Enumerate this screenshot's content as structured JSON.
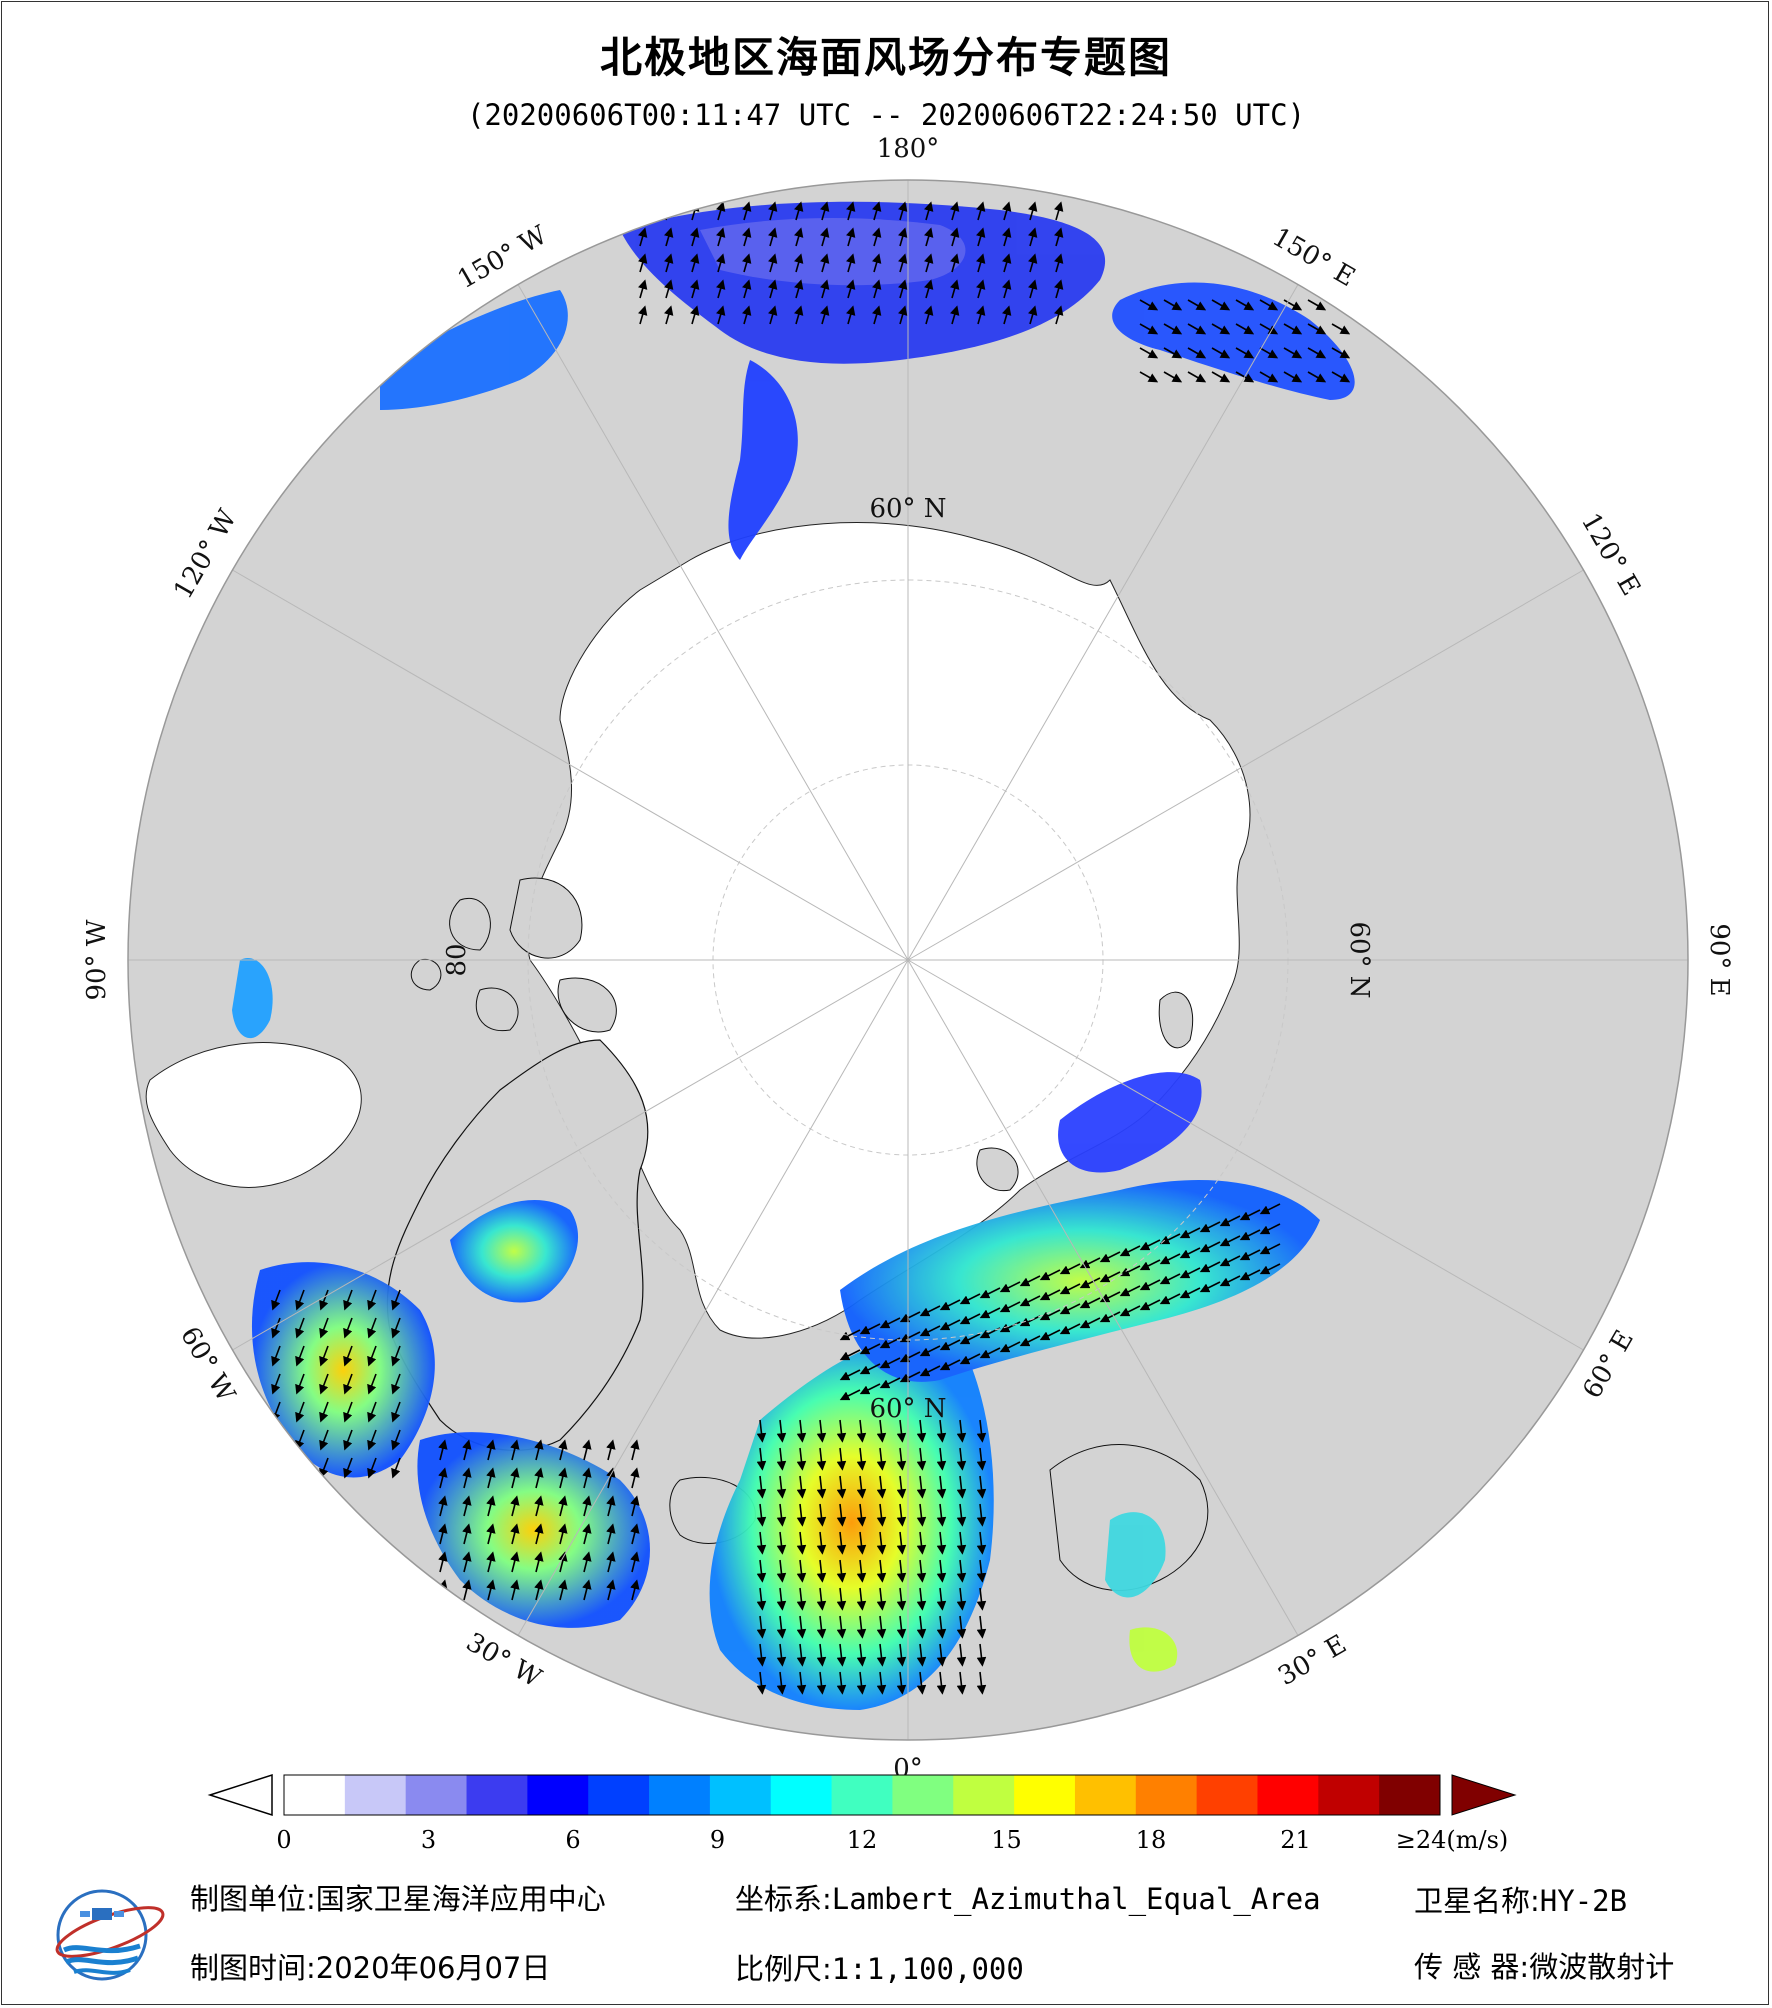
{
  "title": "北极地区海面风场分布专题图",
  "subtitle": "(20200606T00:11:47 UTC -- 20200606T22:24:50 UTC)",
  "map": {
    "projection": "Lambert Azimuthal Equal Area",
    "center": "North Pole",
    "land_color": "#d3d3d3",
    "ice_color": "#ffffff",
    "outer_labels": [
      {
        "text": "180°",
        "angle": 0
      },
      {
        "text": "150° E",
        "angle": 30
      },
      {
        "text": "120° E",
        "angle": 60
      },
      {
        "text": "90° E",
        "angle": 90
      },
      {
        "text": "60° E",
        "angle": 120
      },
      {
        "text": "30° E",
        "angle": 150
      },
      {
        "text": "0°",
        "angle": 180
      },
      {
        "text": "30° W",
        "angle": 210
      },
      {
        "text": "60° W",
        "angle": 240
      },
      {
        "text": "90° W",
        "angle": 270
      },
      {
        "text": "120° W",
        "angle": 300
      },
      {
        "text": "150° W",
        "angle": 330
      }
    ],
    "lat_labels": [
      {
        "text": "60° N",
        "angle": 0
      },
      {
        "text": "60° N",
        "angle": 90
      },
      {
        "text": "60° N",
        "angle": 180
      },
      {
        "text": "80",
        "angle": 270
      }
    ]
  },
  "colorbar": {
    "unit_label": "≥24(m/s)",
    "min": 0,
    "max": 24,
    "ticks": [
      "0",
      "3",
      "6",
      "9",
      "12",
      "15",
      "18",
      "21"
    ],
    "tick_values": [
      0,
      3,
      6,
      9,
      12,
      15,
      18,
      21
    ],
    "colors": [
      "#ffffff",
      "#c8c8f8",
      "#8a8af0",
      "#3c3cf0",
      "#0000ff",
      "#0040ff",
      "#0080ff",
      "#00c0ff",
      "#00ffff",
      "#40ffc0",
      "#80ff80",
      "#c0ff40",
      "#ffff00",
      "#ffc000",
      "#ff8000",
      "#ff4000",
      "#ff0000",
      "#c00000",
      "#800000"
    ]
  },
  "info": {
    "producer_label": "制图单位:",
    "producer": "国家卫星海洋应用中心",
    "crs_label": "坐标系:",
    "crs": "Lambert_Azimuthal_Equal_Area",
    "satellite_label": "卫星名称:",
    "satellite": "HY-2B",
    "date_label": "制图时间:",
    "date": "2020年06月07日",
    "scale_label": "比例尺:",
    "scale": "1:1,100,000",
    "sensor_label": "传 感 器:",
    "sensor": "微波散射计"
  }
}
